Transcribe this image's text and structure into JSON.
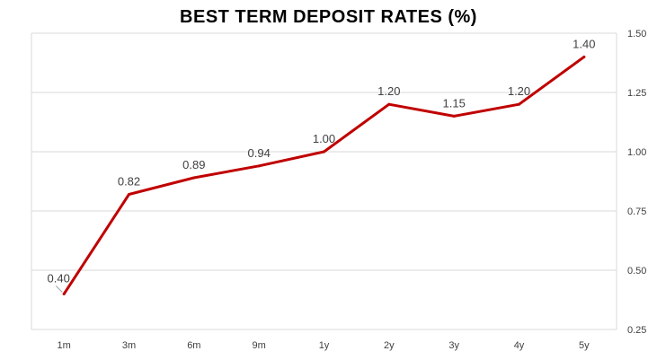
{
  "chart_data": {
    "type": "line",
    "title": "BEST TERM DEPOSIT RATES (%)",
    "categories": [
      "1m",
      "3m",
      "6m",
      "9m",
      "1y",
      "2y",
      "3y",
      "4y",
      "5y"
    ],
    "series": [
      {
        "values": [
          0.4,
          0.82,
          0.89,
          0.94,
          1.0,
          1.2,
          1.15,
          1.2,
          1.4
        ],
        "color": "#c00000"
      }
    ],
    "data_labels": [
      "0.40",
      "0.82",
      "0.89",
      "0.94",
      "1.00",
      "1.20",
      "1.15",
      "1.20",
      "1.40"
    ],
    "y_axis": {
      "position": "right",
      "ylim": [
        0.25,
        1.5
      ],
      "ticks": [
        0.25,
        0.5,
        0.75,
        1.0,
        1.25,
        1.5
      ],
      "tick_labels": [
        "0.25",
        "0.50",
        "0.75",
        "1.00",
        "1.25",
        "1.50"
      ]
    },
    "xlabel": "",
    "ylabel": "",
    "grid": true,
    "legend": "none"
  }
}
